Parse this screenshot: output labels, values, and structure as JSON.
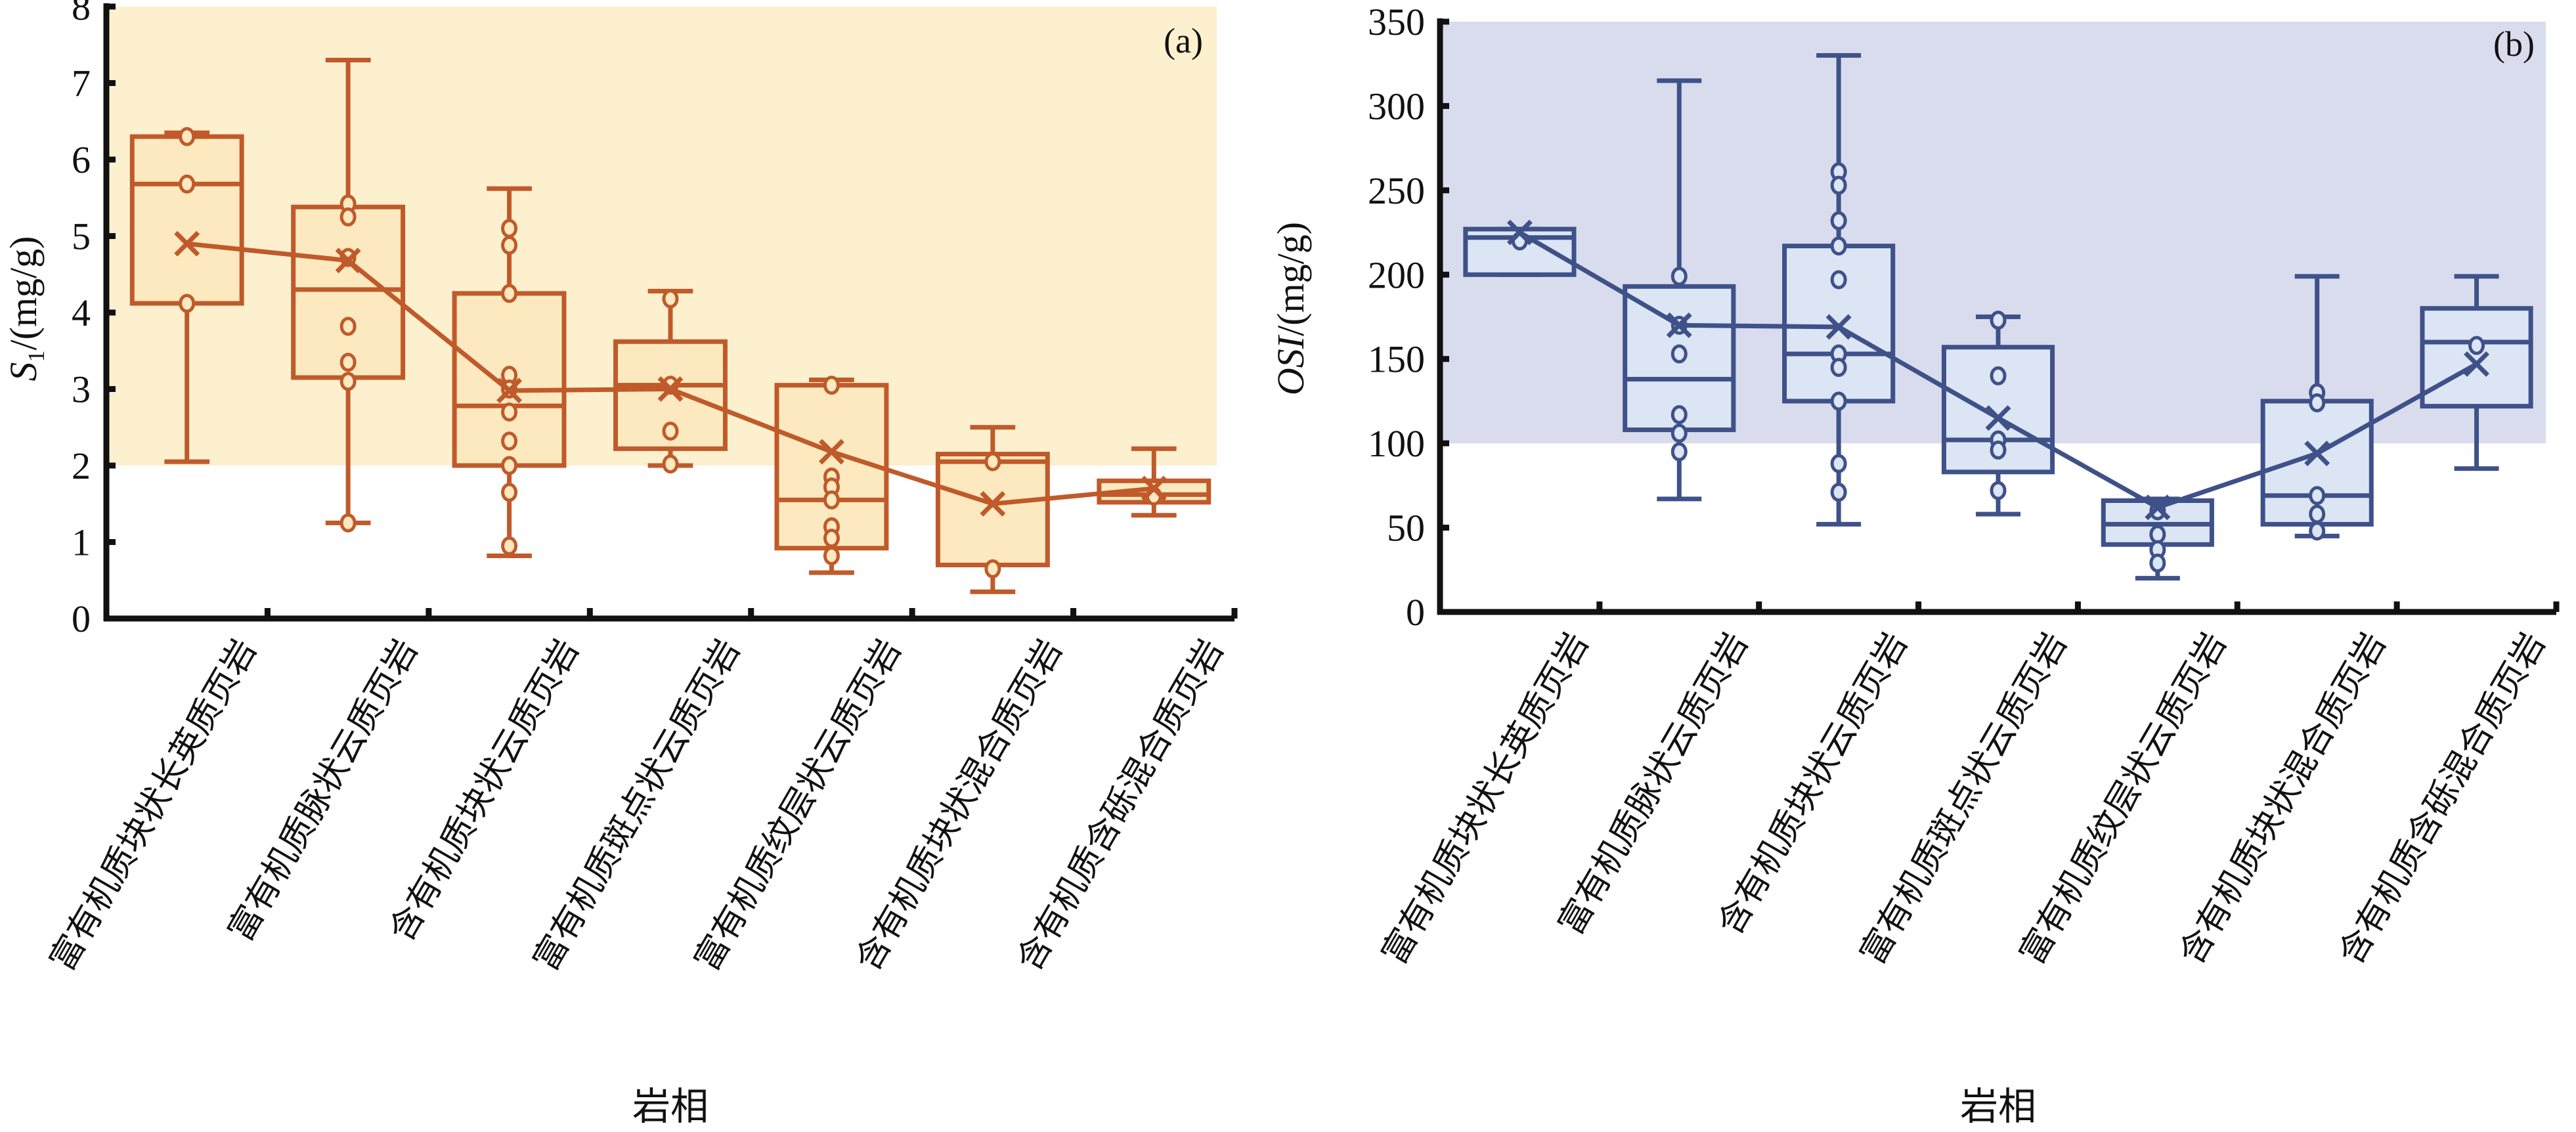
{
  "chart_data": [
    {
      "type": "box",
      "panel_label": "(a)",
      "title": "",
      "xlabel": "岩相",
      "ylabel_main": "S",
      "ylabel_sub": "1",
      "ylabel_unit": "/(mg/g)",
      "ylim": [
        0,
        8
      ],
      "yticks": [
        0,
        1,
        2,
        3,
        4,
        5,
        6,
        7,
        8
      ],
      "shaded_region": {
        "from": 2,
        "to": 8,
        "color": "#fdf0cf"
      },
      "color": "#c05a2a",
      "box_fill": "#fde9c0",
      "grid": false,
      "categories": [
        "富有机质块状长英质页岩",
        "富有机质脉状云质页岩",
        "含有机质块状云质页岩",
        "富有机质斑点状云质页岩",
        "富有机质纹层状云质页岩",
        "含有机质块状混合质页岩",
        "含有机质含砾混合质页岩"
      ],
      "boxes": [
        {
          "min": 2.05,
          "q1": 4.12,
          "median": 5.68,
          "q3": 6.3,
          "max": 6.35,
          "mean": 4.9,
          "points": [
            6.3,
            5.68,
            4.12
          ]
        },
        {
          "min": 1.25,
          "q1": 3.15,
          "median": 4.3,
          "q3": 5.38,
          "max": 7.3,
          "mean": 4.68,
          "points": [
            5.42,
            5.25,
            4.72,
            3.82,
            3.35,
            3.1,
            1.25
          ]
        },
        {
          "min": 0.82,
          "q1": 2.0,
          "median": 2.78,
          "q3": 4.25,
          "max": 5.62,
          "mean": 2.98,
          "points": [
            5.1,
            4.88,
            4.25,
            3.18,
            3.0,
            2.7,
            2.32,
            2.0,
            1.65,
            0.95
          ]
        },
        {
          "min": 2.0,
          "q1": 2.22,
          "median": 3.05,
          "q3": 3.62,
          "max": 4.28,
          "mean": 3.0,
          "points": [
            4.18,
            3.05,
            2.45,
            2.02
          ]
        },
        {
          "min": 0.6,
          "q1": 0.92,
          "median": 1.55,
          "q3": 3.05,
          "max": 3.12,
          "mean": 2.18,
          "points": [
            3.05,
            1.85,
            1.72,
            1.55,
            1.2,
            1.05,
            0.82
          ]
        },
        {
          "min": 0.35,
          "q1": 0.7,
          "median": 2.05,
          "q3": 2.15,
          "max": 2.5,
          "mean": 1.5,
          "points": [
            2.05,
            0.65
          ]
        },
        {
          "min": 1.35,
          "q1": 1.52,
          "median": 1.62,
          "q3": 1.8,
          "max": 2.22,
          "mean": 1.7,
          "points": [
            1.6
          ]
        }
      ]
    },
    {
      "type": "box",
      "panel_label": "(b)",
      "title": "",
      "xlabel": "岩相",
      "ylabel_main": "OSI",
      "ylabel_sub": "",
      "ylabel_unit": "/(mg/g)",
      "ylim": [
        0,
        350
      ],
      "yticks": [
        0,
        50,
        100,
        150,
        200,
        250,
        300,
        350
      ],
      "shaded_region": {
        "from": 100,
        "to": 350,
        "color": "#d8dced"
      },
      "color": "#3f5189",
      "box_fill": "#dce5f3",
      "grid": false,
      "categories": [
        "富有机质块状长英质页岩",
        "富有机质脉状云质页岩",
        "含有机质块状云质页岩",
        "富有机质斑点状云质页岩",
        "富有机质纹层状云质页岩",
        "含有机质块状混合质页岩",
        "含有机质含砾混合质页岩"
      ],
      "boxes": [
        {
          "min": 200,
          "q1": 200,
          "median": 222,
          "q3": 227,
          "max": 227,
          "mean": 225,
          "points": [
            220
          ]
        },
        {
          "min": 67,
          "q1": 108,
          "median": 138,
          "q3": 193,
          "max": 315,
          "mean": 170,
          "points": [
            199,
            170,
            153,
            117,
            106,
            95
          ]
        },
        {
          "min": 52,
          "q1": 125,
          "median": 153,
          "q3": 217,
          "max": 330,
          "mean": 169,
          "points": [
            261,
            253,
            232,
            217,
            197,
            153,
            145,
            125,
            88,
            71
          ]
        },
        {
          "min": 58,
          "q1": 83,
          "median": 102,
          "q3": 157,
          "max": 175,
          "mean": 115,
          "points": [
            173,
            140,
            102,
            96,
            72
          ]
        },
        {
          "min": 20,
          "q1": 40,
          "median": 52,
          "q3": 66,
          "max": 67,
          "mean": 62,
          "points": [
            60,
            46,
            37,
            29
          ]
        },
        {
          "min": 45,
          "q1": 52,
          "median": 69,
          "q3": 125,
          "max": 199,
          "mean": 94,
          "points": [
            130,
            124,
            69,
            58,
            48
          ]
        },
        {
          "min": 85,
          "q1": 122,
          "median": 160,
          "q3": 180,
          "max": 199,
          "mean": 147,
          "points": [
            158
          ]
        }
      ]
    }
  ]
}
